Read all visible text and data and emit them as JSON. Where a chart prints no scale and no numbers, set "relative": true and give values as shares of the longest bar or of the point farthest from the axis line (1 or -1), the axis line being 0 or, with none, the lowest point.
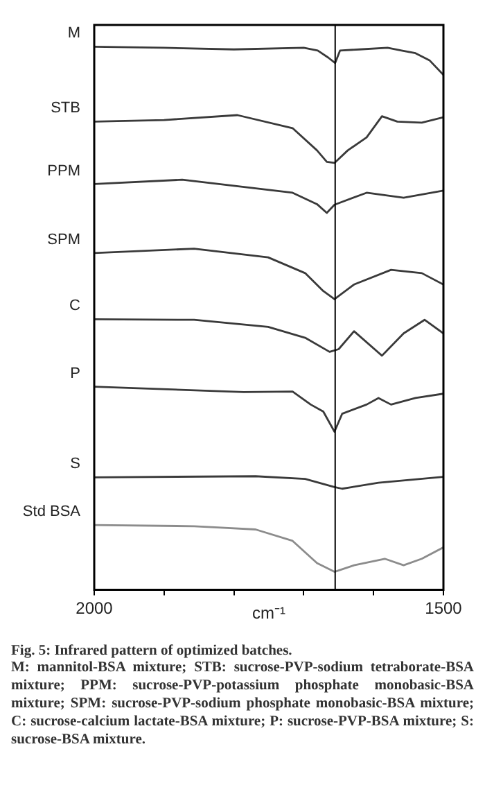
{
  "chart_data": {
    "type": "line",
    "relative": true,
    "xlabel": "cm⁻¹",
    "title": "Fig. 5: Infrared pattern of optimized batches.",
    "annotations": [
      "M: mannitol-BSA mixture; STB: sucrose-PVP-sodium tetraborate-BSA mixture; PPM: sucrose-PVP-potassium phosphate monobasic-BSA mixture; SPM: sucrose-PVP-sodium phosphate monobasic-BSA mixture; C: sucrose-calcium lactate-BSA mixture; P: sucrose-PVP-BSA mixture; S: sucrose-BSA mixture."
    ],
    "xlim": [
      2000,
      1500
    ],
    "xticks": [
      2000,
      {
        "value": 1900,
        "label": null
      },
      {
        "value": 1800,
        "label": null
      },
      {
        "value": 1700,
        "label": null
      },
      {
        "value": 1600,
        "label": null
      },
      1500
    ],
    "grid": false,
    "legend": false,
    "marker": "none",
    "line_style": "solid",
    "ref_lines": [
      {
        "axis": "x",
        "value": 1655,
        "color": "#000000"
      }
    ],
    "series": [
      {
        "name": "M",
        "color": "#3a3a3a",
        "x": [
          2000,
          1900,
          1800,
          1700,
          1680,
          1665,
          1655,
          1648,
          1620,
          1580,
          1560,
          1540,
          1520,
          1500
        ],
        "values": [
          1.0,
          0.998,
          0.995,
          0.998,
          0.993,
          0.98,
          0.97,
          0.993,
          0.995,
          0.998,
          0.993,
          0.988,
          0.975,
          0.948
        ]
      },
      {
        "name": "STB",
        "color": "#3a3a3a",
        "x": [
          2000,
          1900,
          1795,
          1716,
          1681,
          1667,
          1656,
          1637,
          1610,
          1588,
          1566,
          1531,
          1500
        ],
        "values": [
          0.862,
          0.865,
          0.874,
          0.85,
          0.809,
          0.788,
          0.786,
          0.809,
          0.833,
          0.872,
          0.862,
          0.86,
          0.87
        ]
      },
      {
        "name": "PPM",
        "color": "#3a3a3a",
        "x": [
          2000,
          1874,
          1716,
          1681,
          1667,
          1656,
          1610,
          1557,
          1500
        ],
        "values": [
          0.747,
          0.755,
          0.731,
          0.71,
          0.694,
          0.709,
          0.731,
          0.722,
          0.735
        ]
      },
      {
        "name": "SPM",
        "color": "#3a3a3a",
        "x": [
          2000,
          1857,
          1751,
          1698,
          1672,
          1656,
          1628,
          1575,
          1531,
          1500
        ],
        "values": [
          0.62,
          0.628,
          0.612,
          0.583,
          0.55,
          0.535,
          0.562,
          0.589,
          0.583,
          0.562
        ]
      },
      {
        "name": "C",
        "color": "#3a3a3a",
        "x": [
          2000,
          1857,
          1751,
          1698,
          1663,
          1650,
          1628,
          1588,
          1557,
          1527,
          1500
        ],
        "values": [
          0.498,
          0.497,
          0.484,
          0.464,
          0.438,
          0.443,
          0.476,
          0.431,
          0.472,
          0.497,
          0.472
        ]
      },
      {
        "name": "P",
        "color": "#3a3a3a",
        "x": [
          2000,
          1786,
          1716,
          1690,
          1672,
          1656,
          1645,
          1610,
          1593,
          1575,
          1540,
          1500
        ],
        "values": [
          0.374,
          0.364,
          0.365,
          0.341,
          0.328,
          0.291,
          0.324,
          0.341,
          0.353,
          0.341,
          0.353,
          0.361
        ]
      },
      {
        "name": "S",
        "color": "#3a3a3a",
        "x": [
          2000,
          1769,
          1698,
          1656,
          1645,
          1593,
          1500
        ],
        "values": [
          0.207,
          0.209,
          0.204,
          0.189,
          0.186,
          0.197,
          0.208
        ]
      },
      {
        "name": "Std BSA",
        "color": "#8c8c8c",
        "x": [
          2000,
          1857,
          1769,
          1716,
          1681,
          1656,
          1628,
          1584,
          1557,
          1531,
          1500
        ],
        "values": [
          0.119,
          0.117,
          0.111,
          0.09,
          0.049,
          0.033,
          0.045,
          0.057,
          0.045,
          0.057,
          0.078
        ]
      }
    ]
  }
}
